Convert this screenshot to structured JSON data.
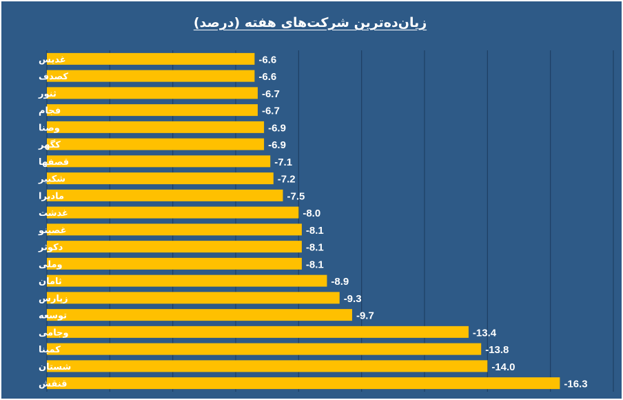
{
  "chart_data": {
    "type": "bar",
    "orientation": "horizontal",
    "title": "زیان‌ده‌ترین شرکت‌های هفته (درصد)",
    "xlabel": "",
    "ylabel": "",
    "categories": [
      "غدیس",
      "کصدف",
      "ثنور",
      "فجام",
      "وصنا",
      "کگهر",
      "قصفها",
      "شکبیر",
      "مادیرا",
      "غدشت",
      "غصینو",
      "دکوثر",
      "وملی",
      "ثامان",
      "زپارس",
      "توسعه",
      "وجامی",
      "کمینا",
      "شستان",
      "قنقش"
    ],
    "values": [
      -6.6,
      -6.6,
      -6.7,
      -6.7,
      -6.9,
      -6.9,
      -7.1,
      -7.2,
      -7.5,
      -8.0,
      -8.1,
      -8.1,
      -8.1,
      -8.9,
      -9.3,
      -9.7,
      -13.4,
      -13.8,
      -14.0,
      -16.3
    ],
    "value_labels": [
      "-6.6",
      "-6.6",
      "-6.7",
      "-6.7",
      "-6.9",
      "-6.9",
      "-7.1",
      "-7.2",
      "-7.5",
      "-8.0",
      "-8.1",
      "-8.1",
      "-8.1",
      "-8.9",
      "-9.3",
      "-9.7",
      "-13.4",
      "-13.8",
      "-14.0",
      "-16.3"
    ],
    "xlim": [
      0,
      18
    ],
    "grid": true,
    "legend": "none",
    "colors": {
      "bar": "#ffc000",
      "background": "#2e5a87",
      "grid": "#1e3f63",
      "text": "#ffffff"
    }
  }
}
